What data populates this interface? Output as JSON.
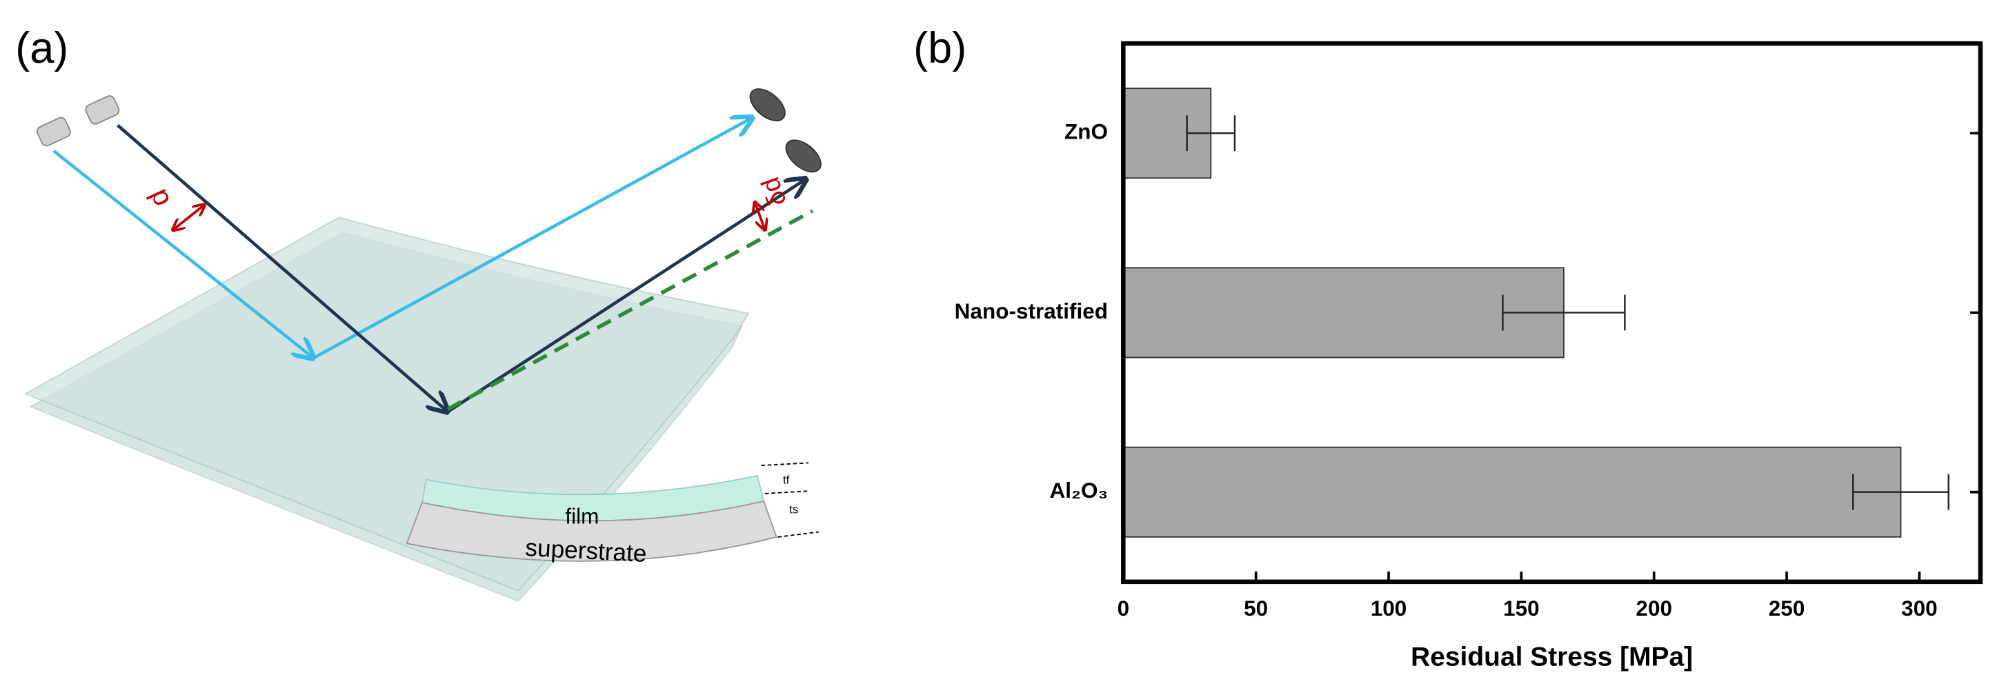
{
  "panel_a": {
    "label": "(a)",
    "offset_label": "d",
    "shift_label": "δd",
    "film_label": "film",
    "substrate_label": "superstrate",
    "film_thickness": "tf",
    "substrate_thickness": "ts"
  },
  "chart_data": {
    "type": "hbar",
    "panel_label": "(b)",
    "x_label": "Residual Stress [MPa]",
    "categories": [
      "ZnO",
      "Nano-stratified",
      "Al₂O₃"
    ],
    "values": [
      33,
      166,
      293
    ],
    "errors": [
      9,
      23,
      18
    ],
    "color": "#a6a6a6",
    "xlim": [
      0,
      323
    ],
    "xticks": [
      0,
      50,
      100,
      150,
      200,
      250,
      300
    ]
  }
}
